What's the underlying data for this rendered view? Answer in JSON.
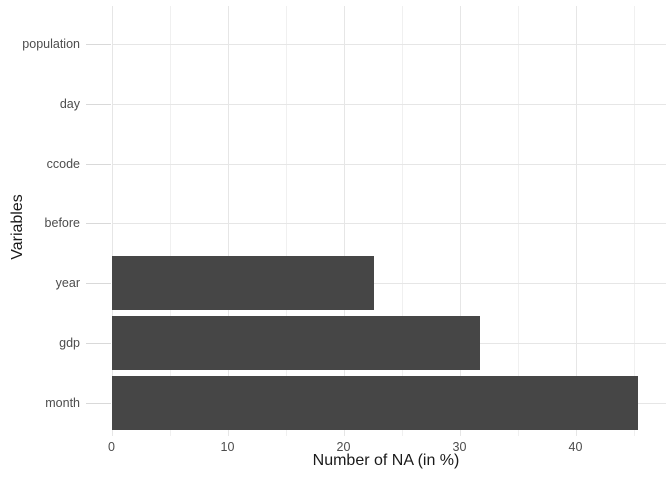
{
  "chart_data": {
    "type": "bar",
    "orientation": "horizontal",
    "title": "",
    "xlabel": "Number of NA (in %)",
    "ylabel": "Variables",
    "categories_top_to_bottom": [
      "population",
      "day",
      "ccode",
      "before",
      "year",
      "gdp",
      "month"
    ],
    "values": [
      0,
      0,
      0,
      0,
      22.6,
      31.8,
      45.4
    ],
    "x_major_ticks": [
      0,
      10,
      20,
      30,
      40
    ],
    "x_minor_ticks": [
      5,
      15,
      25,
      35,
      45
    ],
    "xlim": [
      0,
      47.7
    ],
    "grid": "on",
    "legend": "none",
    "colors": {
      "bar_fill": "#464646",
      "grid_major": "#e6e6e6",
      "grid_minor": "#f0f0f0",
      "axis_tick_mark": "#d9d9d9",
      "tick_label": "#4d4d4d",
      "axis_title": "#1a1a1a",
      "background": "#ffffff"
    }
  }
}
